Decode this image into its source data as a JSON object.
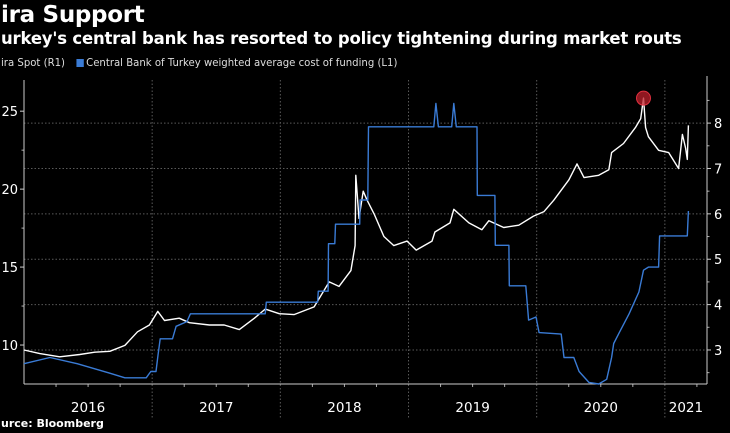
{
  "header": {
    "title": "ira Support",
    "subtitle": "urkey's central bank has resorted to policy tightening during market routs"
  },
  "footer": {
    "source": "urce: Bloomberg"
  },
  "colors": {
    "background": "#000000",
    "lira": "#ffffff",
    "cbrt": "#3a7bd5",
    "marker": "#c0202b",
    "grid": "#666666"
  },
  "chart_data": {
    "type": "line",
    "title": "ira Support",
    "subtitle": "urkey's central bank has resorted to policy tightening during market routs",
    "xlabel": "",
    "x_tick_labels": [
      "2016",
      "2017",
      "2018",
      "2019",
      "2020",
      "2021"
    ],
    "xlim": [
      "2016-01-01",
      "2021-05-01"
    ],
    "y_left": {
      "ticks": [
        10,
        15,
        20,
        25
      ],
      "ylim": [
        7.5,
        27
      ]
    },
    "y_right": {
      "ticks": [
        3,
        4,
        5,
        6,
        7,
        8
      ],
      "ylim": [
        2.25,
        8.95
      ]
    },
    "grid": true,
    "legend_placement": "top-left",
    "series": [
      {
        "name": "ira Spot  (R1)",
        "axis": "right",
        "color": "#ffffff",
        "points": [
          [
            "2016-01-01",
            3.0
          ],
          [
            "2016-02-15",
            2.92
          ],
          [
            "2016-04-12",
            2.85
          ],
          [
            "2016-06-08",
            2.9
          ],
          [
            "2016-07-21",
            2.95
          ],
          [
            "2016-09-02",
            2.97
          ],
          [
            "2016-10-15",
            3.1
          ],
          [
            "2016-11-20",
            3.4
          ],
          [
            "2016-12-24",
            3.55
          ],
          [
            "2017-01-17",
            3.85
          ],
          [
            "2017-02-05",
            3.65
          ],
          [
            "2017-03-19",
            3.7
          ],
          [
            "2017-04-17",
            3.6
          ],
          [
            "2017-06-13",
            3.55
          ],
          [
            "2017-07-25",
            3.55
          ],
          [
            "2017-09-06",
            3.45
          ],
          [
            "2017-10-19",
            3.7
          ],
          [
            "2017-11-19",
            3.9
          ],
          [
            "2017-12-29",
            3.8
          ],
          [
            "2018-02-09",
            3.78
          ],
          [
            "2018-04-07",
            3.95
          ],
          [
            "2018-05-20",
            4.5
          ],
          [
            "2018-06-17",
            4.4
          ],
          [
            "2018-07-21",
            4.75
          ],
          [
            "2018-08-02",
            5.3
          ],
          [
            "2018-08-04",
            6.85
          ],
          [
            "2018-08-13",
            5.9
          ],
          [
            "2018-08-25",
            6.5
          ],
          [
            "2018-09-05",
            6.3
          ],
          [
            "2018-09-25",
            6.0
          ],
          [
            "2018-10-23",
            5.5
          ],
          [
            "2018-11-20",
            5.3
          ],
          [
            "2018-12-28",
            5.4
          ],
          [
            "2019-01-23",
            5.2
          ],
          [
            "2019-03-09",
            5.4
          ],
          [
            "2019-03-17",
            5.6
          ],
          [
            "2019-04-29",
            5.8
          ],
          [
            "2019-05-10",
            6.1
          ],
          [
            "2019-06-22",
            5.8
          ],
          [
            "2019-07-29",
            5.65
          ],
          [
            "2019-08-18",
            5.85
          ],
          [
            "2019-09-29",
            5.7
          ],
          [
            "2019-11-11",
            5.75
          ],
          [
            "2019-12-23",
            5.95
          ],
          [
            "2020-01-22",
            6.05
          ],
          [
            "2020-02-19",
            6.3
          ],
          [
            "2020-04-02",
            6.75
          ],
          [
            "2020-04-25",
            7.1
          ],
          [
            "2020-05-15",
            6.8
          ],
          [
            "2020-06-26",
            6.85
          ],
          [
            "2020-07-25",
            6.97
          ],
          [
            "2020-08-02",
            7.35
          ],
          [
            "2020-09-05",
            7.55
          ],
          [
            "2020-10-09",
            7.9
          ],
          [
            "2020-10-24",
            8.1
          ],
          [
            "2020-11-01",
            8.55
          ],
          [
            "2020-11-07",
            7.9
          ],
          [
            "2020-11-15",
            7.7
          ],
          [
            "2020-12-14",
            7.4
          ],
          [
            "2021-01-12",
            7.35
          ],
          [
            "2021-02-09",
            7.0
          ],
          [
            "2021-02-20",
            7.75
          ],
          [
            "2021-03-01",
            7.45
          ],
          [
            "2021-03-06",
            7.2
          ],
          [
            "2021-03-09",
            7.95
          ]
        ],
        "highlight": {
          "date": "2020-11-01",
          "value": 8.55
        }
      },
      {
        "name": "Central Bank of Turkey weighted average cost of funding  (L1)",
        "axis": "left",
        "color": "#3a7bd5",
        "points": [
          [
            "2016-01-01",
            8.8
          ],
          [
            "2016-03-15",
            9.2
          ],
          [
            "2016-06-01",
            8.8
          ],
          [
            "2016-09-01",
            8.2
          ],
          [
            "2016-10-15",
            7.9
          ],
          [
            "2016-12-15",
            7.9
          ],
          [
            "2016-12-28",
            8.3
          ],
          [
            "2017-01-12",
            8.3
          ],
          [
            "2017-01-18",
            9.4
          ],
          [
            "2017-01-24",
            10.4
          ],
          [
            "2017-02-28",
            10.4
          ],
          [
            "2017-03-10",
            11.2
          ],
          [
            "2017-04-10",
            11.5
          ],
          [
            "2017-04-20",
            12.0
          ],
          [
            "2017-11-19",
            12.0
          ],
          [
            "2017-11-22",
            12.75
          ],
          [
            "2018-04-17",
            12.75
          ],
          [
            "2018-04-19",
            13.45
          ],
          [
            "2018-05-17",
            13.45
          ],
          [
            "2018-05-18",
            16.5
          ],
          [
            "2018-06-05",
            16.5
          ],
          [
            "2018-06-07",
            17.75
          ],
          [
            "2018-08-15",
            17.75
          ],
          [
            "2018-08-16",
            19.3
          ],
          [
            "2018-09-07",
            19.3
          ],
          [
            "2018-09-09",
            24.0
          ],
          [
            "2019-03-14",
            24.0
          ],
          [
            "2019-03-20",
            25.5
          ],
          [
            "2019-03-27",
            24.0
          ],
          [
            "2019-05-04",
            24.0
          ],
          [
            "2019-05-10",
            25.5
          ],
          [
            "2019-05-17",
            24.0
          ],
          [
            "2019-07-15",
            24.0
          ],
          [
            "2019-07-16",
            19.6
          ],
          [
            "2019-09-04",
            19.6
          ],
          [
            "2019-09-05",
            16.4
          ],
          [
            "2019-10-14",
            16.4
          ],
          [
            "2019-10-15",
            13.8
          ],
          [
            "2019-12-01",
            13.8
          ],
          [
            "2019-12-09",
            11.6
          ],
          [
            "2019-12-30",
            11.8
          ],
          [
            "2020-01-08",
            10.8
          ],
          [
            "2020-03-11",
            10.7
          ],
          [
            "2020-03-19",
            9.2
          ],
          [
            "2020-04-16",
            9.2
          ],
          [
            "2020-05-01",
            8.3
          ],
          [
            "2020-05-29",
            7.6
          ],
          [
            "2020-06-26",
            7.5
          ],
          [
            "2020-07-19",
            7.8
          ],
          [
            "2020-08-02",
            9.2
          ],
          [
            "2020-08-08",
            10.1
          ],
          [
            "2020-08-24",
            10.8
          ],
          [
            "2020-09-21",
            12.0
          ],
          [
            "2020-10-19",
            13.4
          ],
          [
            "2020-11-01",
            14.8
          ],
          [
            "2020-11-15",
            15.0
          ],
          [
            "2020-12-14",
            15.0
          ],
          [
            "2020-12-17",
            17.0
          ],
          [
            "2021-03-06",
            17.0
          ],
          [
            "2021-03-09",
            18.6
          ]
        ]
      }
    ]
  }
}
